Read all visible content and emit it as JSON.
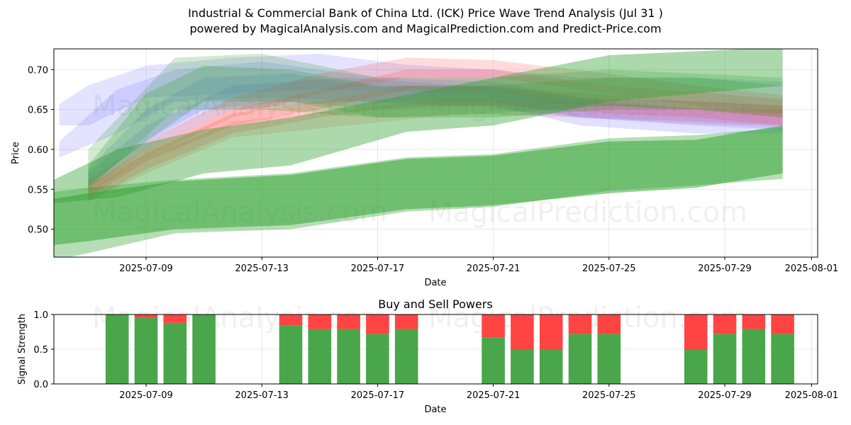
{
  "title_line1": "Industrial & Commercial Bank of China Ltd. (ICK) Price Wave Trend Analysis (Jul 31 )",
  "title_line2": "powered by MagicalAnalysis.com and MagicalPrediction.com and Predict-Price.com",
  "watermarks": [
    "MagicalAnalysis.com",
    "MagicalPrediction.com"
  ],
  "colors": {
    "green": "#2ca02c",
    "red": "#ff4d4d",
    "blue": "#6666ff",
    "buy": "#4aa64a",
    "sell": "#ff4444"
  },
  "chart_data": [
    {
      "type": "area",
      "title": "",
      "xlabel": "Date",
      "ylabel": "Price",
      "xlim": [
        "2025-07-05",
        "2025-08-01"
      ],
      "ylim": [
        0.465,
        0.726
      ],
      "x_ticks": [
        "2025-07-09",
        "2025-07-13",
        "2025-07-17",
        "2025-07-21",
        "2025-07-25",
        "2025-07-29",
        "2025-08-01"
      ],
      "y_ticks": [
        "0.50",
        "0.55",
        "0.60",
        "0.65",
        "0.70"
      ],
      "grid": true,
      "series": [
        {
          "color": "green",
          "opacity": 0.5,
          "x": [
            "2025-07-05",
            "2025-07-07",
            "2025-07-10",
            "2025-07-14",
            "2025-07-18",
            "2025-07-21",
            "2025-07-25",
            "2025-07-28",
            "2025-07-31"
          ],
          "upper": [
            0.533,
            0.545,
            0.56,
            0.568,
            0.588,
            0.592,
            0.61,
            0.612,
            0.63
          ],
          "lower": [
            0.477,
            0.485,
            0.5,
            0.505,
            0.525,
            0.53,
            0.545,
            0.552,
            0.57
          ]
        },
        {
          "color": "green",
          "opacity": 0.35,
          "x": [
            "2025-07-05",
            "2025-07-07",
            "2025-07-10",
            "2025-07-14",
            "2025-07-18",
            "2025-07-21",
            "2025-07-25",
            "2025-07-28",
            "2025-07-31"
          ],
          "upper": [
            0.543,
            0.552,
            0.562,
            0.57,
            0.59,
            0.594,
            0.614,
            0.618,
            0.627
          ],
          "lower": [
            0.455,
            0.47,
            0.495,
            0.5,
            0.522,
            0.528,
            0.548,
            0.555,
            0.563
          ]
        },
        {
          "color": "green",
          "opacity": 0.4,
          "x": [
            "2025-07-05",
            "2025-07-08",
            "2025-07-11",
            "2025-07-14",
            "2025-07-18",
            "2025-07-21",
            "2025-07-25",
            "2025-07-31"
          ],
          "upper": [
            0.548,
            0.6,
            0.625,
            0.64,
            0.668,
            0.69,
            0.718,
            0.728
          ],
          "lower": [
            0.53,
            0.54,
            0.57,
            0.58,
            0.622,
            0.63,
            0.66,
            0.68
          ]
        },
        {
          "color": "green",
          "opacity": 0.25,
          "x": [
            "2025-07-07",
            "2025-07-09",
            "2025-07-11",
            "2025-07-14",
            "2025-07-17",
            "2025-07-21",
            "2025-07-25",
            "2025-07-28",
            "2025-07-31"
          ],
          "upper": [
            0.58,
            0.67,
            0.705,
            0.7,
            0.68,
            0.68,
            0.69,
            0.69,
            0.68
          ],
          "lower": [
            0.555,
            0.61,
            0.66,
            0.66,
            0.64,
            0.64,
            0.65,
            0.65,
            0.64
          ]
        },
        {
          "color": "green",
          "opacity": 0.22,
          "x": [
            "2025-07-07",
            "2025-07-10",
            "2025-07-13",
            "2025-07-17",
            "2025-07-21",
            "2025-07-25",
            "2025-07-31"
          ],
          "upper": [
            0.6,
            0.715,
            0.72,
            0.69,
            0.69,
            0.7,
            0.69
          ],
          "lower": [
            0.55,
            0.65,
            0.65,
            0.64,
            0.645,
            0.655,
            0.645
          ]
        },
        {
          "color": "blue",
          "opacity": 0.18,
          "x": [
            "2025-07-06",
            "2025-07-07",
            "2025-07-09",
            "2025-07-12",
            "2025-07-15",
            "2025-07-18",
            "2025-07-21",
            "2025-07-24",
            "2025-07-28",
            "2025-07-31"
          ],
          "upper": [
            0.657,
            0.68,
            0.705,
            0.715,
            0.72,
            0.706,
            0.7,
            0.69,
            0.69,
            0.685
          ],
          "lower": [
            0.63,
            0.63,
            0.665,
            0.67,
            0.675,
            0.672,
            0.665,
            0.655,
            0.65,
            0.645
          ]
        },
        {
          "color": "blue",
          "opacity": 0.18,
          "x": [
            "2025-07-06",
            "2025-07-08",
            "2025-07-10",
            "2025-07-13",
            "2025-07-17",
            "2025-07-21",
            "2025-07-24",
            "2025-07-28",
            "2025-07-31"
          ],
          "upper": [
            0.61,
            0.675,
            0.7,
            0.71,
            0.69,
            0.685,
            0.665,
            0.66,
            0.655
          ],
          "lower": [
            0.59,
            0.62,
            0.66,
            0.665,
            0.66,
            0.66,
            0.64,
            0.635,
            0.63
          ]
        },
        {
          "color": "blue",
          "opacity": 0.2,
          "x": [
            "2025-07-07",
            "2025-07-09",
            "2025-07-11",
            "2025-07-14",
            "2025-07-17",
            "2025-07-21",
            "2025-07-24",
            "2025-07-28",
            "2025-07-31"
          ],
          "upper": [
            0.575,
            0.65,
            0.69,
            0.695,
            0.678,
            0.68,
            0.665,
            0.65,
            0.648
          ],
          "lower": [
            0.555,
            0.61,
            0.65,
            0.66,
            0.65,
            0.655,
            0.63,
            0.62,
            0.62
          ]
        },
        {
          "color": "blue",
          "opacity": 0.2,
          "x": [
            "2025-07-07",
            "2025-07-09",
            "2025-07-12",
            "2025-07-16",
            "2025-07-20",
            "2025-07-24",
            "2025-07-28",
            "2025-07-31"
          ],
          "upper": [
            0.57,
            0.63,
            0.68,
            0.69,
            0.68,
            0.66,
            0.65,
            0.645
          ],
          "lower": [
            0.55,
            0.6,
            0.65,
            0.66,
            0.655,
            0.64,
            0.63,
            0.625
          ]
        },
        {
          "color": "red",
          "opacity": 0.2,
          "x": [
            "2025-07-07",
            "2025-07-09",
            "2025-07-12",
            "2025-07-15",
            "2025-07-18",
            "2025-07-21",
            "2025-07-25",
            "2025-07-28",
            "2025-07-31"
          ],
          "upper": [
            0.562,
            0.61,
            0.665,
            0.695,
            0.715,
            0.712,
            0.695,
            0.68,
            0.668
          ],
          "lower": [
            0.545,
            0.59,
            0.64,
            0.67,
            0.69,
            0.69,
            0.67,
            0.655,
            0.645
          ]
        },
        {
          "color": "red",
          "opacity": 0.22,
          "x": [
            "2025-07-07",
            "2025-07-09",
            "2025-07-12",
            "2025-07-15",
            "2025-07-18",
            "2025-07-21",
            "2025-07-25",
            "2025-07-28",
            "2025-07-31"
          ],
          "upper": [
            0.558,
            0.6,
            0.65,
            0.675,
            0.7,
            0.7,
            0.68,
            0.672,
            0.663
          ],
          "lower": [
            0.54,
            0.585,
            0.63,
            0.65,
            0.675,
            0.672,
            0.655,
            0.65,
            0.64
          ]
        },
        {
          "color": "red",
          "opacity": 0.22,
          "x": [
            "2025-07-07",
            "2025-07-09",
            "2025-07-12",
            "2025-07-15",
            "2025-07-18",
            "2025-07-21",
            "2025-07-25",
            "2025-07-28",
            "2025-07-31"
          ],
          "upper": [
            0.555,
            0.595,
            0.645,
            0.66,
            0.68,
            0.678,
            0.668,
            0.66,
            0.655
          ],
          "lower": [
            0.535,
            0.575,
            0.62,
            0.64,
            0.655,
            0.655,
            0.645,
            0.64,
            0.63
          ]
        },
        {
          "color": "red",
          "opacity": 0.18,
          "x": [
            "2025-07-07",
            "2025-07-09",
            "2025-07-12",
            "2025-07-16",
            "2025-07-20",
            "2025-07-24",
            "2025-07-28",
            "2025-07-31"
          ],
          "upper": [
            0.55,
            0.59,
            0.635,
            0.65,
            0.665,
            0.66,
            0.652,
            0.65
          ],
          "lower": [
            0.535,
            0.57,
            0.615,
            0.63,
            0.645,
            0.64,
            0.632,
            0.628
          ]
        }
      ]
    },
    {
      "type": "bar",
      "title": "Buy and Sell Powers",
      "xlabel": "Date",
      "ylabel": "Signal Strength",
      "xlim": [
        "2025-07-05",
        "2025-08-01"
      ],
      "ylim": [
        0,
        1
      ],
      "x_ticks": [
        "2025-07-09",
        "2025-07-13",
        "2025-07-17",
        "2025-07-21",
        "2025-07-25",
        "2025-07-29",
        "2025-08-01"
      ],
      "y_ticks": [
        "0.0",
        "0.5",
        "1.0"
      ],
      "grid": true,
      "categories": [
        "2025-07-08",
        "2025-07-09",
        "2025-07-10",
        "2025-07-11",
        "2025-07-14",
        "2025-07-15",
        "2025-07-16",
        "2025-07-17",
        "2025-07-18",
        "2025-07-21",
        "2025-07-22",
        "2025-07-23",
        "2025-07-24",
        "2025-07-25",
        "2025-07-28",
        "2025-07-29",
        "2025-07-30",
        "2025-07-31"
      ],
      "series": [
        {
          "values": [
            1.0,
            0.95,
            0.88,
            1.0,
            0.84,
            0.79,
            0.79,
            0.72,
            0.79,
            0.67,
            0.5,
            0.5,
            0.72,
            0.72,
            0.5,
            0.72,
            0.79,
            0.72
          ]
        },
        {
          "values": [
            0.0,
            0.05,
            0.12,
            0.0,
            0.16,
            0.21,
            0.21,
            0.28,
            0.21,
            0.33,
            0.5,
            0.5,
            0.28,
            0.28,
            0.5,
            0.28,
            0.21,
            0.28
          ]
        }
      ]
    }
  ]
}
